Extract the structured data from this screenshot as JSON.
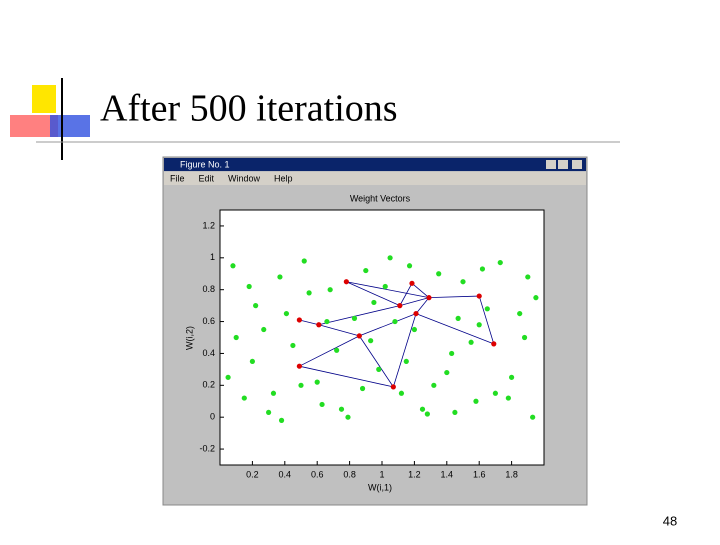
{
  "slide": {
    "title": "After 500 iterations",
    "page_number": "48"
  },
  "window": {
    "title": "Figure No. 1",
    "menu": [
      "File",
      "Edit",
      "Window",
      "Help"
    ]
  },
  "chart_data": {
    "type": "scatter",
    "title": "Weight Vectors",
    "x_label": "W(i,1)",
    "y_label": "W(i,2)",
    "xlim": [
      0,
      2
    ],
    "ylim": [
      -0.3,
      1.3
    ],
    "xticks": [
      0.2,
      0.4,
      0.6,
      0.8,
      1,
      1.2,
      1.4,
      1.6,
      1.8
    ],
    "yticks": [
      -0.2,
      0,
      0.2,
      0.4,
      0.6,
      0.8,
      1,
      1.2
    ],
    "series": [
      {
        "color": "#22dd22",
        "x": [
          0.08,
          0.15,
          0.22,
          0.3,
          0.37,
          0.45,
          0.52,
          0.6,
          0.68,
          0.75,
          0.83,
          0.9,
          0.98,
          1.05,
          1.12,
          1.2,
          1.28,
          1.35,
          1.43,
          1.5,
          1.58,
          1.65,
          1.73,
          1.8,
          1.88,
          1.95,
          0.1,
          0.2,
          0.33,
          0.41,
          0.55,
          0.63,
          0.72,
          0.88,
          0.95,
          1.08,
          1.17,
          1.25,
          1.4,
          1.47,
          1.55,
          1.62,
          1.78,
          1.9,
          0.05,
          0.18,
          0.27,
          0.38,
          0.5,
          0.66,
          0.79,
          0.93,
          1.02,
          1.15,
          1.32,
          1.45,
          1.6,
          1.7,
          1.85,
          1.93
        ],
        "values": [
          0.95,
          0.12,
          0.7,
          0.03,
          0.88,
          0.45,
          0.98,
          0.22,
          0.8,
          0.05,
          0.62,
          0.92,
          0.3,
          1.0,
          0.15,
          0.55,
          0.02,
          0.9,
          0.4,
          0.85,
          0.1,
          0.68,
          0.97,
          0.25,
          0.5,
          0.75,
          0.5,
          0.35,
          0.15,
          0.65,
          0.78,
          0.08,
          0.42,
          0.18,
          0.72,
          0.6,
          0.95,
          0.05,
          0.28,
          0.62,
          0.47,
          0.93,
          0.12,
          0.88,
          0.25,
          0.82,
          0.55,
          -0.02,
          0.2,
          0.6,
          0.0,
          0.48,
          0.82,
          0.35,
          0.2,
          0.03,
          0.58,
          0.15,
          0.65,
          0.0
        ]
      },
      {
        "color": "#dd0000",
        "x": [
          0.78,
          1.185,
          1.29,
          1.6,
          1.11,
          1.21,
          0.49,
          0.61,
          0.86,
          1.69,
          0.49,
          1.07
        ],
        "values": [
          0.85,
          0.84,
          0.75,
          0.76,
          0.7,
          0.65,
          0.61,
          0.58,
          0.51,
          0.46,
          0.32,
          0.19
        ],
        "links": [
          [
            0,
            4
          ],
          [
            0,
            2
          ],
          [
            1,
            2
          ],
          [
            1,
            4
          ],
          [
            2,
            3
          ],
          [
            3,
            9
          ],
          [
            4,
            2
          ],
          [
            5,
            2
          ],
          [
            6,
            7
          ],
          [
            7,
            4
          ],
          [
            7,
            8
          ],
          [
            8,
            5
          ],
          [
            5,
            9
          ],
          [
            10,
            8
          ],
          [
            8,
            11
          ],
          [
            11,
            5
          ],
          [
            10,
            11
          ]
        ],
        "link_color": "#000088"
      }
    ]
  }
}
